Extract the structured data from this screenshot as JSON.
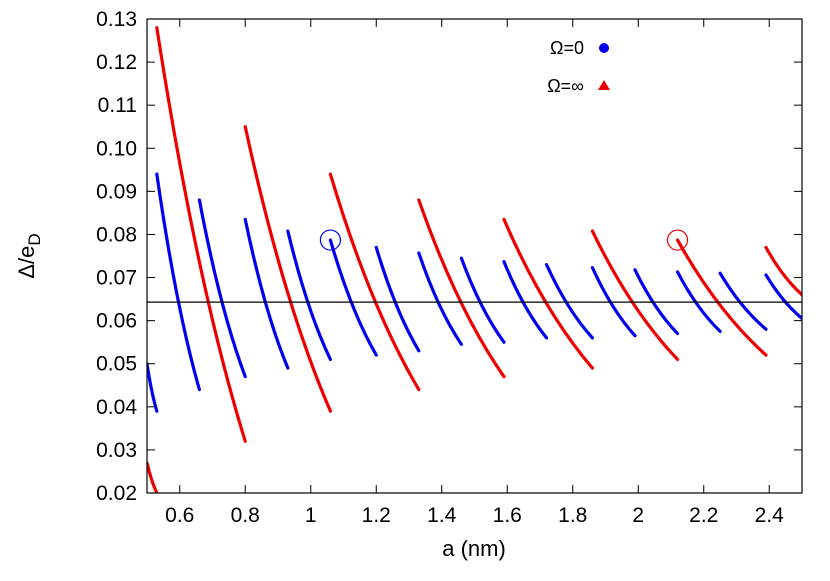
{
  "chart_data": {
    "type": "line",
    "xlabel": "a (nm)",
    "ylabel_main": "Δ/e",
    "ylabel_sub": "D",
    "xlim": [
      0.5,
      2.5
    ],
    "ylim": [
      0.02,
      0.13
    ],
    "x_ticks": [
      {
        "value": 0.6,
        "label": "0.6"
      },
      {
        "value": 0.8,
        "label": "0.8"
      },
      {
        "value": 1.0,
        "label": "1"
      },
      {
        "value": 1.2,
        "label": "1.2"
      },
      {
        "value": 1.4,
        "label": "1.4"
      },
      {
        "value": 1.6,
        "label": "1.6"
      },
      {
        "value": 1.8,
        "label": "1.8"
      },
      {
        "value": 2.0,
        "label": "2"
      },
      {
        "value": 2.2,
        "label": "2.2"
      },
      {
        "value": 2.4,
        "label": "2.4"
      }
    ],
    "y_ticks": [
      {
        "value": 0.02,
        "label": "0.02"
      },
      {
        "value": 0.03,
        "label": "0.03"
      },
      {
        "value": 0.04,
        "label": "0.04"
      },
      {
        "value": 0.05,
        "label": "0.05"
      },
      {
        "value": 0.06,
        "label": "0.06"
      },
      {
        "value": 0.07,
        "label": "0.07"
      },
      {
        "value": 0.08,
        "label": "0.08"
      },
      {
        "value": 0.09,
        "label": "0.09"
      },
      {
        "value": 0.1,
        "label": "0.10"
      },
      {
        "value": 0.11,
        "label": "0.11"
      },
      {
        "value": 0.12,
        "label": "0.12"
      },
      {
        "value": 0.13,
        "label": "0.13"
      }
    ],
    "grid": false,
    "legend_position": "top-right",
    "horizontal_line": 0.0643,
    "series": [
      {
        "name": "Ω=0",
        "color": "#0000ee",
        "marker": "circle",
        "segments": [
          [
            [
              0.5,
              0.05
            ],
            [
              0.53,
              0.039
            ]
          ],
          [
            [
              0.53,
              0.094
            ],
            [
              0.66,
              0.044
            ]
          ],
          [
            [
              0.66,
              0.088
            ],
            [
              0.8,
              0.047
            ]
          ],
          [
            [
              0.8,
              0.0835
            ],
            [
              0.93,
              0.049
            ]
          ],
          [
            [
              0.93,
              0.0808
            ],
            [
              1.06,
              0.051
            ]
          ],
          [
            [
              1.06,
              0.0787
            ],
            [
              1.2,
              0.052
            ]
          ],
          [
            [
              1.2,
              0.077
            ],
            [
              1.33,
              0.053
            ]
          ],
          [
            [
              1.33,
              0.0757
            ],
            [
              1.46,
              0.0545
            ]
          ],
          [
            [
              1.46,
              0.0745
            ],
            [
              1.59,
              0.055
            ]
          ],
          [
            [
              1.59,
              0.0737
            ],
            [
              1.72,
              0.056
            ]
          ],
          [
            [
              1.72,
              0.073
            ],
            [
              1.86,
              0.056
            ]
          ],
          [
            [
              1.86,
              0.0723
            ],
            [
              1.99,
              0.0565
            ]
          ],
          [
            [
              1.99,
              0.0718
            ],
            [
              2.12,
              0.057
            ]
          ],
          [
            [
              2.12,
              0.0713
            ],
            [
              2.25,
              0.0575
            ]
          ],
          [
            [
              2.25,
              0.071
            ],
            [
              2.39,
              0.058
            ]
          ],
          [
            [
              2.39,
              0.0706
            ],
            [
              2.5,
              0.0605
            ]
          ]
        ]
      },
      {
        "name": "Ω=∞",
        "color": "#ee0000",
        "marker": "triangle",
        "segments": [
          [
            [
              0.5,
              0.027
            ],
            [
              0.53,
              0.02
            ]
          ],
          [
            [
              0.53,
              0.128
            ],
            [
              0.8,
              0.032
            ]
          ],
          [
            [
              0.8,
              0.105
            ],
            [
              1.06,
              0.039
            ]
          ],
          [
            [
              1.06,
              0.094
            ],
            [
              1.33,
              0.044
            ]
          ],
          [
            [
              1.33,
              0.088
            ],
            [
              1.59,
              0.047
            ]
          ],
          [
            [
              1.59,
              0.0835
            ],
            [
              1.86,
              0.049
            ]
          ],
          [
            [
              1.86,
              0.0808
            ],
            [
              2.12,
              0.051
            ]
          ],
          [
            [
              2.12,
              0.0787
            ],
            [
              2.39,
              0.052
            ]
          ],
          [
            [
              2.39,
              0.077
            ],
            [
              2.5,
              0.066
            ]
          ]
        ]
      }
    ],
    "highlight_points": [
      {
        "x": 1.06,
        "y": 0.0787,
        "color": "#0000ee"
      },
      {
        "x": 2.12,
        "y": 0.0787,
        "color": "#ee0000"
      }
    ]
  }
}
